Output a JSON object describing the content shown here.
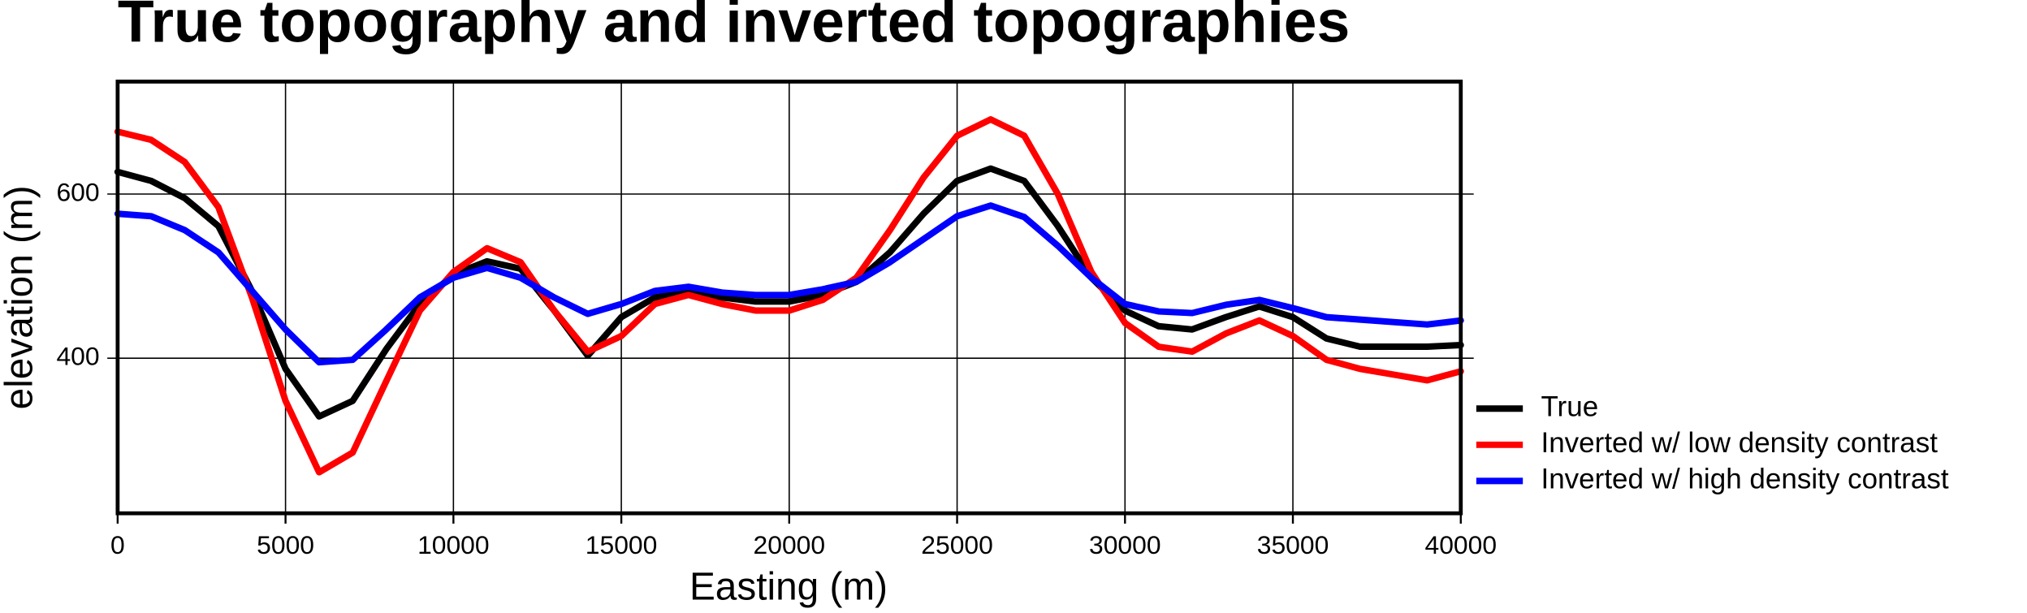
{
  "chart_data": {
    "type": "line",
    "title": "True topography and inverted topographies",
    "x_label": "Easting (m)",
    "y_label": "elevation (m)",
    "x": [
      0,
      1000,
      2000,
      3000,
      4000,
      5000,
      6000,
      7000,
      8000,
      9000,
      10000,
      11000,
      12000,
      13000,
      14000,
      15000,
      16000,
      17000,
      18000,
      19000,
      20000,
      21000,
      22000,
      23000,
      24000,
      25000,
      26000,
      27000,
      28000,
      29000,
      30000,
      31000,
      32000,
      33000,
      34000,
      35000,
      36000,
      37000,
      38000,
      39000,
      40000
    ],
    "series": [
      {
        "name": "True",
        "color": "#000000",
        "values": [
          627,
          616,
          595,
          561,
          482,
          387,
          329,
          348,
          411,
          466,
          502,
          518,
          509,
          458,
          403,
          450,
          474,
          480,
          474,
          469,
          469,
          477,
          493,
          529,
          576,
          616,
          631,
          616,
          561,
          498,
          458,
          439,
          435,
          450,
          463,
          450,
          424,
          414,
          414,
          414,
          416
        ]
      },
      {
        "name": "Inverted w/ low density contrast",
        "color": "#ff0000",
        "values": [
          676,
          666,
          639,
          584,
          474,
          348,
          261,
          285,
          372,
          458,
          505,
          534,
          517,
          458,
          408,
          427,
          466,
          477,
          466,
          458,
          458,
          471,
          498,
          556,
          620,
          671,
          691,
          671,
          600,
          505,
          443,
          414,
          408,
          430,
          446,
          427,
          398,
          387,
          380,
          373,
          384
        ]
      },
      {
        "name": "Inverted w/ high density contrast",
        "color": "#0000ff",
        "values": [
          576,
          573,
          556,
          529,
          482,
          435,
          395,
          398,
          435,
          474,
          498,
          510,
          498,
          474,
          454,
          466,
          482,
          487,
          480,
          477,
          477,
          484,
          493,
          517,
          545,
          573,
          586,
          572,
          537,
          498,
          466,
          457,
          455,
          465,
          471,
          461,
          450,
          447,
          444,
          441,
          446
        ]
      }
    ],
    "xlim": [
      0,
      40000
    ],
    "ylim": [
      211,
      737
    ],
    "xticks": [
      0,
      5000,
      10000,
      15000,
      20000,
      25000,
      30000,
      35000,
      40000
    ],
    "yticks": [
      400,
      600
    ],
    "grid": true,
    "legend": "right"
  }
}
